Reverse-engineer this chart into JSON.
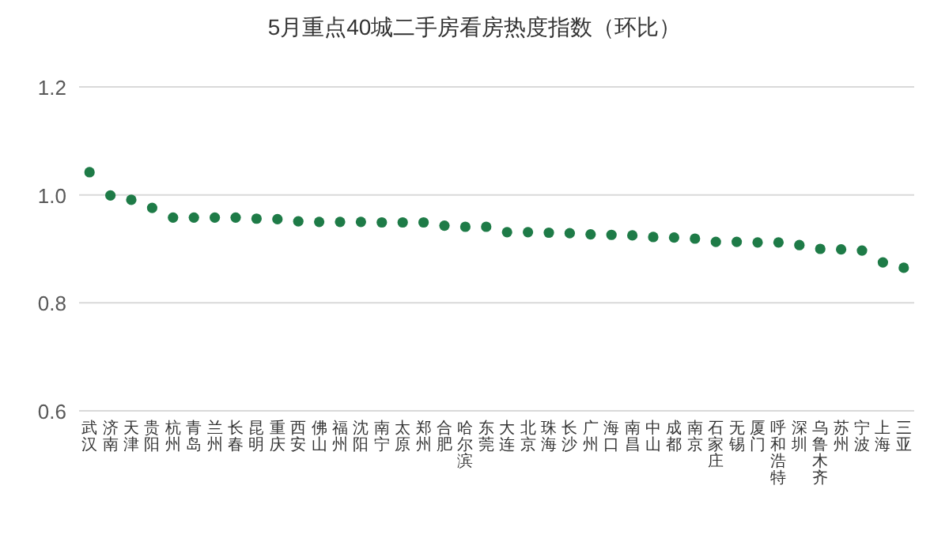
{
  "chart_data": {
    "type": "scatter",
    "title": "5月重点40城二手房看房热度指数（环比）",
    "categories": [
      "武汉",
      "济南",
      "天津",
      "贵阳",
      "杭州",
      "青岛",
      "兰州",
      "长春",
      "昆明",
      "重庆",
      "西安",
      "佛山",
      "福州",
      "沈阳",
      "南宁",
      "太原",
      "郑州",
      "合肥",
      "哈尔滨",
      "东莞",
      "大连",
      "北京",
      "珠海",
      "长沙",
      "广州",
      "海口",
      "南昌",
      "中山",
      "成都",
      "南京",
      "石家庄",
      "无锡",
      "厦门",
      "呼和浩特",
      "深圳",
      "乌鲁木齐",
      "苏州",
      "宁波",
      "上海",
      "三亚"
    ],
    "series": [
      {
        "color": "#1e7b47",
        "values": [
          1.042,
          0.999,
          0.991,
          0.976,
          0.958,
          0.958,
          0.958,
          0.958,
          0.956,
          0.955,
          0.951,
          0.95,
          0.95,
          0.95,
          0.949,
          0.949,
          0.949,
          0.943,
          0.941,
          0.941,
          0.931,
          0.931,
          0.93,
          0.929,
          0.927,
          0.926,
          0.925,
          0.922,
          0.921,
          0.919,
          0.913,
          0.913,
          0.912,
          0.912,
          0.907,
          0.9,
          0.899,
          0.897,
          0.875,
          0.865
        ]
      }
    ],
    "ylim": [
      0.6,
      1.2
    ],
    "yticks": [
      {
        "value": 0.6,
        "label": "0.6"
      },
      {
        "value": 0.8,
        "label": "0.8"
      },
      {
        "value": 1.0,
        "label": "1.0"
      },
      {
        "value": 1.2,
        "label": "1.2"
      }
    ],
    "grid": "y",
    "marker": "circle"
  }
}
